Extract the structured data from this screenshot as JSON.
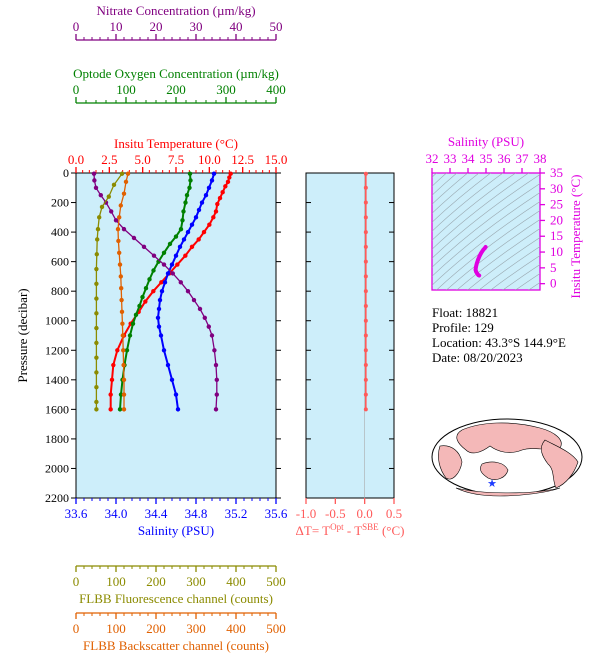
{
  "info": {
    "float": "Float:  18821",
    "profile": "Profile:  129",
    "location": "Location:  43.3°S  144.9°E",
    "date": "Date:  08/20/2023"
  },
  "colors": {
    "panel_bg": "#cdeefa",
    "nitrate": "#800080",
    "oxygen": "#008000",
    "temperature": "#ff0000",
    "salinity": "#0000ff",
    "fluorescence": "#8b8b00",
    "backscatter": "#e06000",
    "delta_t": "#ff5a5a",
    "ts_axis": "#e000e0",
    "map_land": "#f4b8b8",
    "map_ocean": "#ffffff",
    "float_marker": "#1e3cff"
  },
  "chart_data": [
    {
      "type": "line",
      "name": "main_profile_panel",
      "ylabel": "Pressure (decibar)",
      "ylim": [
        2200,
        0
      ],
      "yticks": [
        0,
        200,
        400,
        600,
        800,
        1000,
        1200,
        1400,
        1600,
        1800,
        2000,
        2200
      ],
      "grid": false,
      "axes": [
        {
          "key": "nitrate",
          "label": "Nitrate Concentration (µm/kg)",
          "range": [
            0,
            50
          ],
          "ticks": [
            0,
            10,
            20,
            30,
            40,
            50
          ],
          "color": "#800080",
          "position": "top-1"
        },
        {
          "key": "oxygen",
          "label": "Optode Oxygen Concentration (µm/kg)",
          "range": [
            0,
            400
          ],
          "ticks": [
            0,
            100,
            200,
            300,
            400
          ],
          "color": "#008000",
          "position": "top-2"
        },
        {
          "key": "temperature",
          "label": "Insitu Temperature (°C)",
          "range": [
            0,
            15
          ],
          "ticks": [
            "0.0",
            "2.5",
            "5.0",
            "7.5",
            "10.0",
            "12.5",
            "15.0"
          ],
          "color": "#ff0000",
          "position": "top-3"
        },
        {
          "key": "salinity",
          "label": "Salinity (PSU)",
          "range": [
            33.6,
            35.6
          ],
          "ticks": [
            "33.6",
            "34.0",
            "34.4",
            "34.8",
            "35.2",
            "35.6"
          ],
          "color": "#0000ff",
          "position": "bottom-1"
        },
        {
          "key": "fluorescence",
          "label": "FLBB Fluorescence channel (counts)",
          "range": [
            0,
            500
          ],
          "ticks": [
            0,
            100,
            200,
            300,
            400,
            500
          ],
          "color": "#8b8b00",
          "position": "bottom-2"
        },
        {
          "key": "backscatter",
          "label": "FLBB Backscatter channel (counts)",
          "range": [
            0,
            500
          ],
          "ticks": [
            0,
            100,
            200,
            300,
            400,
            500
          ],
          "color": "#e06000",
          "position": "bottom-3"
        }
      ],
      "series": [
        {
          "key": "temperature",
          "axis": "temperature",
          "points": [
            [
              11.6,
              5
            ],
            [
              11.5,
              30
            ],
            [
              11.4,
              60
            ],
            [
              11.2,
              90
            ],
            [
              11.0,
              130
            ],
            [
              10.8,
              170
            ],
            [
              10.6,
              210
            ],
            [
              10.5,
              260
            ],
            [
              10.3,
              300
            ],
            [
              10.0,
              350
            ],
            [
              9.6,
              400
            ],
            [
              9.2,
              450
            ],
            [
              8.7,
              500
            ],
            [
              8.2,
              560
            ],
            [
              7.6,
              620
            ],
            [
              7.0,
              680
            ],
            [
              6.4,
              740
            ],
            [
              5.8,
              800
            ],
            [
              5.2,
              870
            ],
            [
              4.7,
              940
            ],
            [
              4.1,
              1020
            ],
            [
              3.6,
              1100
            ],
            [
              3.1,
              1200
            ],
            [
              2.8,
              1300
            ],
            [
              2.7,
              1400
            ],
            [
              2.6,
              1500
            ],
            [
              2.6,
              1600
            ]
          ]
        },
        {
          "key": "salinity",
          "axis": "salinity",
          "points": [
            [
              34.98,
              5
            ],
            [
              34.96,
              50
            ],
            [
              34.93,
              100
            ],
            [
              34.9,
              150
            ],
            [
              34.86,
              200
            ],
            [
              34.83,
              250
            ],
            [
              34.8,
              300
            ],
            [
              34.76,
              350
            ],
            [
              34.72,
              400
            ],
            [
              34.68,
              450
            ],
            [
              34.64,
              500
            ],
            [
              34.6,
              560
            ],
            [
              34.56,
              620
            ],
            [
              34.52,
              680
            ],
            [
              34.49,
              740
            ],
            [
              34.46,
              800
            ],
            [
              34.44,
              860
            ],
            [
              34.43,
              920
            ],
            [
              34.42,
              980
            ],
            [
              34.43,
              1040
            ],
            [
              34.45,
              1100
            ],
            [
              34.48,
              1200
            ],
            [
              34.52,
              1300
            ],
            [
              34.56,
              1400
            ],
            [
              34.6,
              1500
            ],
            [
              34.62,
              1600
            ]
          ]
        },
        {
          "key": "oxygen",
          "axis": "oxygen",
          "points": [
            [
              228,
              5
            ],
            [
              229,
              50
            ],
            [
              227,
              100
            ],
            [
              222,
              150
            ],
            [
              219,
              200
            ],
            [
              215,
              260
            ],
            [
              213,
              320
            ],
            [
              210,
              380
            ],
            [
              200,
              430
            ],
            [
              188,
              480
            ],
            [
              176,
              540
            ],
            [
              165,
              600
            ],
            [
              155,
              660
            ],
            [
              147,
              720
            ],
            [
              140,
              780
            ],
            [
              133,
              840
            ],
            [
              127,
              900
            ],
            [
              120,
              960
            ],
            [
              114,
              1020
            ],
            [
              108,
              1100
            ],
            [
              102,
              1200
            ],
            [
              97,
              1300
            ],
            [
              93,
              1400
            ],
            [
              90,
              1500
            ],
            [
              88,
              1600
            ]
          ]
        },
        {
          "key": "nitrate",
          "axis": "nitrate",
          "points": [
            [
              4.5,
              5
            ],
            [
              4.6,
              50
            ],
            [
              5.0,
              100
            ],
            [
              6.2,
              150
            ],
            [
              7.5,
              200
            ],
            [
              8.8,
              260
            ],
            [
              10.0,
              320
            ],
            [
              12.0,
              380
            ],
            [
              14.5,
              440
            ],
            [
              17.0,
              500
            ],
            [
              19.5,
              560
            ],
            [
              22.0,
              620
            ],
            [
              24.2,
              680
            ],
            [
              26.2,
              740
            ],
            [
              28.0,
              800
            ],
            [
              29.5,
              860
            ],
            [
              31.0,
              920
            ],
            [
              32.2,
              980
            ],
            [
              33.2,
              1040
            ],
            [
              34.0,
              1100
            ],
            [
              34.6,
              1200
            ],
            [
              35.0,
              1300
            ],
            [
              35.2,
              1400
            ],
            [
              35.2,
              1500
            ],
            [
              35.0,
              1600
            ]
          ]
        },
        {
          "key": "fluorescence",
          "axis": "fluorescence",
          "points": [
            [
              115,
              5
            ],
            [
              95,
              80
            ],
            [
              82,
              160
            ],
            [
              65,
              230
            ],
            [
              58,
              300
            ],
            [
              55,
              380
            ],
            [
              53,
              450
            ],
            [
              52,
              550
            ],
            [
              51,
              650
            ],
            [
              51,
              750
            ],
            [
              51,
              850
            ],
            [
              51,
              950
            ],
            [
              51,
              1050
            ],
            [
              51,
              1150
            ],
            [
              51,
              1250
            ],
            [
              51,
              1350
            ],
            [
              51,
              1450
            ],
            [
              51,
              1550
            ],
            [
              51,
              1600
            ]
          ]
        },
        {
          "key": "backscatter",
          "axis": "backscatter",
          "points": [
            [
              130,
              5
            ],
            [
              125,
              60
            ],
            [
              120,
              140
            ],
            [
              112,
              220
            ],
            [
              108,
              300
            ],
            [
              105,
              380
            ],
            [
              106,
              460
            ],
            [
              108,
              540
            ],
            [
              110,
              620
            ],
            [
              112,
              700
            ],
            [
              113,
              780
            ],
            [
              114,
              860
            ],
            [
              115,
              940
            ],
            [
              116,
              1020
            ],
            [
              117,
              1100
            ],
            [
              118,
              1200
            ],
            [
              119,
              1300
            ],
            [
              120,
              1400
            ],
            [
              120,
              1500
            ],
            [
              120,
              1600
            ]
          ]
        }
      ]
    },
    {
      "type": "line",
      "name": "delta_t_panel",
      "xlabel": "ΔT= T^Opt - T^SBE (°C)",
      "xlim": [
        -1.0,
        0.5
      ],
      "xticks": [
        "-1.0",
        "-0.5",
        "0.0",
        "0.5"
      ],
      "ylim": [
        2200,
        0
      ],
      "series": [
        {
          "key": "delta_t",
          "points": [
            [
              0.02,
              5
            ],
            [
              0.02,
              100
            ],
            [
              0.02,
              200
            ],
            [
              0.02,
              300
            ],
            [
              0.02,
              400
            ],
            [
              0.02,
              500
            ],
            [
              0.02,
              600
            ],
            [
              0.02,
              700
            ],
            [
              0.02,
              800
            ],
            [
              0.02,
              900
            ],
            [
              0.02,
              1000
            ],
            [
              0.02,
              1100
            ],
            [
              0.02,
              1200
            ],
            [
              0.02,
              1300
            ],
            [
              0.02,
              1400
            ],
            [
              0.02,
              1500
            ],
            [
              0.02,
              1600
            ]
          ]
        }
      ]
    },
    {
      "type": "scatter",
      "name": "ts_diagram",
      "xlabel": "Salinity (PSU)",
      "ylabel": "Insitu Temperature (°C)",
      "xlim": [
        32,
        38
      ],
      "ylim": [
        -2,
        35
      ],
      "xticks": [
        32,
        33,
        34,
        35,
        36,
        37,
        38
      ],
      "yticks": [
        0,
        5,
        10,
        15,
        20,
        25,
        30,
        35
      ],
      "series": [
        {
          "key": "ts",
          "points": [
            [
              34.98,
              11.6
            ],
            [
              34.93,
              11.2
            ],
            [
              34.86,
              10.8
            ],
            [
              34.8,
              10.3
            ],
            [
              34.72,
              9.6
            ],
            [
              34.64,
              8.7
            ],
            [
              34.56,
              7.6
            ],
            [
              34.49,
              6.4
            ],
            [
              34.44,
              5.2
            ],
            [
              34.42,
              4.4
            ],
            [
              34.45,
              3.8
            ],
            [
              34.52,
              3.1
            ],
            [
              34.58,
              2.7
            ],
            [
              34.62,
              2.6
            ]
          ]
        }
      ]
    }
  ]
}
